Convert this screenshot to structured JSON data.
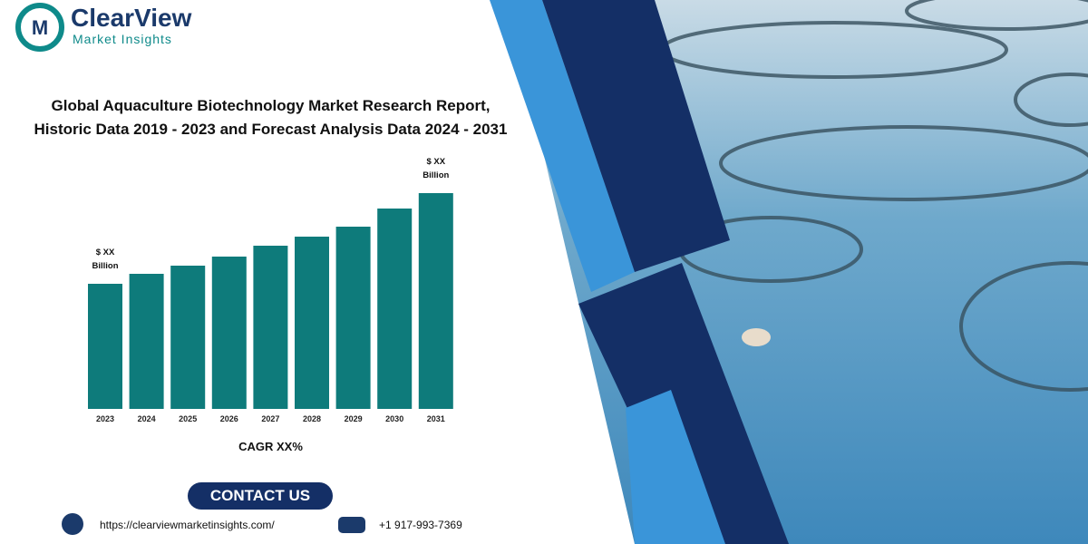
{
  "brand": {
    "name": "ClearView",
    "tagline": "Market Insights"
  },
  "title_lines": [
    "Global Aquaculture Biotechnology Market Research Report,",
    "Historic Data 2019 - 2023 and Forecast Analysis Data 2024 - 2031"
  ],
  "chart_data": {
    "type": "bar",
    "categories": [
      "2023",
      "2024",
      "2025",
      "2026",
      "2027",
      "2028",
      "2029",
      "2030",
      "2031"
    ],
    "values": [
      138,
      149,
      158,
      168,
      180,
      190,
      201,
      221,
      238
    ],
    "value_labels": [
      "$ XX Billion",
      null,
      null,
      null,
      null,
      null,
      null,
      null,
      "$ XX Billion"
    ],
    "color": "#0e7b7b",
    "caption": "CAGR XX%"
  },
  "contact": {
    "button": "CONTACT US",
    "website": "https://clearviewmarketinsights.com/",
    "phone": "+1 917-993-7369"
  }
}
